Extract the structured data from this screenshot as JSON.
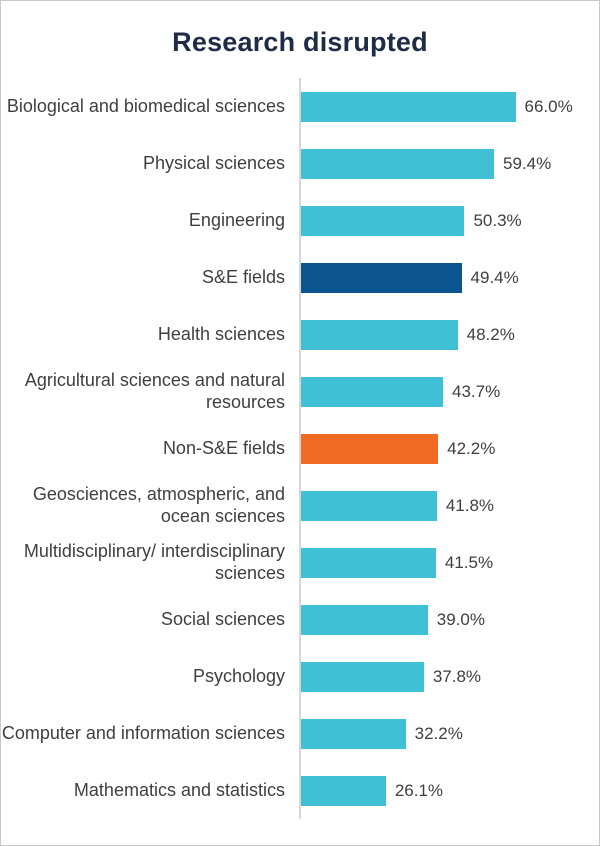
{
  "title": "Research disrupted",
  "colors": {
    "teal": "#3fc0d4",
    "dark_blue": "#0b5591",
    "orange": "#f16a21",
    "axis_line": "#d6d6d6",
    "title_text": "#202c45",
    "label_text": "#3f3f3f"
  },
  "chart_data": {
    "type": "bar",
    "orientation": "horizontal",
    "title": "Research disrupted",
    "xlabel": "",
    "ylabel": "",
    "xlim": [
      0,
      70
    ],
    "grid": false,
    "legend": "none",
    "categories": [
      "Biological and biomedical sciences",
      "Physical sciences",
      "Engineering",
      "S&E fields",
      "Health sciences",
      "Agricultural sciences and natural resources",
      "Non-S&E fields",
      "Geosciences, atmospheric, and ocean sciences",
      "Multidisciplinary/ interdisciplinary sciences",
      "Social sciences",
      "Psychology",
      "Computer and information sciences",
      "Mathematics and statistics"
    ],
    "values": [
      66.0,
      59.4,
      50.3,
      49.4,
      48.2,
      43.7,
      42.2,
      41.8,
      41.5,
      39.0,
      37.8,
      32.2,
      26.1
    ],
    "value_labels": [
      "66.0%",
      "59.4%",
      "50.3%",
      "49.4%",
      "48.2%",
      "43.7%",
      "42.2%",
      "41.8%",
      "41.5%",
      "39.0%",
      "37.8%",
      "32.2%",
      "26.1%"
    ],
    "bar_colors": [
      "teal",
      "teal",
      "teal",
      "dark_blue",
      "teal",
      "teal",
      "orange",
      "teal",
      "teal",
      "teal",
      "teal",
      "teal",
      "teal"
    ]
  }
}
